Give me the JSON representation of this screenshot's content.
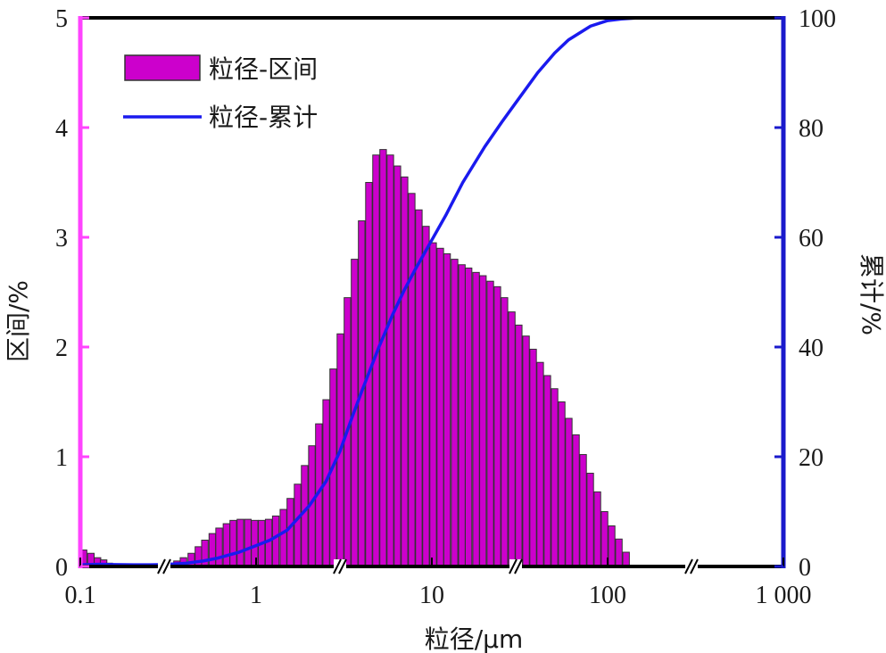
{
  "chart_data": {
    "type": "bar",
    "xlabel": "粒径/μm",
    "ylabel_left": "区间/%",
    "ylabel_right": "累计/%",
    "x_scale": "log",
    "xlim": [
      0.1,
      1000
    ],
    "ylim_left": [
      0,
      5
    ],
    "ylim_right": [
      0,
      100
    ],
    "x_ticks": [
      {
        "value": 0.1,
        "label": "0.1"
      },
      {
        "value": 1,
        "label": "1"
      },
      {
        "value": 10,
        "label": "10"
      },
      {
        "value": 100,
        "label": "100"
      },
      {
        "value": 1000,
        "label": "1 000"
      }
    ],
    "y_left_ticks": [
      0,
      1,
      2,
      3,
      4,
      5
    ],
    "y_right_ticks": [
      0,
      20,
      40,
      60,
      80,
      100
    ],
    "legend": {
      "position": "top-left"
    },
    "colors": {
      "bar_fill": "#cc00cc",
      "bar_edge": "#333333",
      "line": "#1a1aee",
      "left_axis": "#ff44ff",
      "right_axis": "#1a1acc"
    },
    "series": [
      {
        "name": "粒径-区间",
        "type": "bar",
        "axis": "left",
        "x": [
          0.1,
          0.11,
          0.12,
          0.13,
          0.14,
          0.15,
          0.17,
          0.18,
          0.2,
          0.22,
          0.24,
          0.26,
          0.28,
          0.31,
          0.34,
          0.37,
          0.41,
          0.45,
          0.49,
          0.54,
          0.59,
          0.65,
          0.71,
          0.78,
          0.86,
          0.94,
          1.03,
          1.13,
          1.24,
          1.37,
          1.5,
          1.65,
          1.81,
          1.99,
          2.18,
          2.4,
          2.63,
          2.89,
          3.17,
          3.48,
          3.82,
          4.2,
          4.61,
          5.06,
          5.56,
          6.1,
          6.7,
          7.36,
          8.08,
          8.87,
          9.74,
          10.7,
          11.7,
          12.9,
          14.2,
          15.5,
          17.1,
          18.7,
          20.6,
          22.6,
          24.8,
          27.3,
          29.9,
          32.9,
          36.1,
          39.6,
          43.5,
          47.8,
          52.5,
          57.6,
          63.3,
          69.5,
          76.3,
          83.8,
          92,
          101,
          111,
          122,
          134,
          147,
          161,
          177
        ],
        "values": [
          0.15,
          0.12,
          0.08,
          0.06,
          0.03,
          0.02,
          0.02,
          0.02,
          0.02,
          0.02,
          0.02,
          0.02,
          0.02,
          0.03,
          0.05,
          0.08,
          0.12,
          0.18,
          0.24,
          0.3,
          0.35,
          0.39,
          0.42,
          0.43,
          0.43,
          0.42,
          0.42,
          0.43,
          0.46,
          0.52,
          0.62,
          0.75,
          0.92,
          1.1,
          1.3,
          1.52,
          1.8,
          2.12,
          2.45,
          2.8,
          3.15,
          3.5,
          3.75,
          3.8,
          3.75,
          3.65,
          3.55,
          3.4,
          3.25,
          3.1,
          2.95,
          2.9,
          2.85,
          2.8,
          2.75,
          2.72,
          2.68,
          2.65,
          2.6,
          2.55,
          2.45,
          2.32,
          2.2,
          2.1,
          1.98,
          1.86,
          1.74,
          1.62,
          1.5,
          1.35,
          1.2,
          1.02,
          0.85,
          0.68,
          0.5,
          0.37,
          0.25,
          0.13,
          0,
          0,
          0,
          0
        ]
      },
      {
        "name": "粒径-累计",
        "type": "line",
        "axis": "right",
        "x": [
          0.1,
          0.13,
          0.15,
          0.2,
          0.25,
          0.3,
          0.4,
          0.5,
          0.6,
          0.8,
          1,
          1.2,
          1.5,
          2,
          2.5,
          3,
          3.5,
          4,
          5,
          6,
          7,
          8,
          10,
          12,
          15,
          20,
          25,
          30,
          40,
          50,
          60,
          80,
          100,
          120,
          150,
          200,
          300,
          500,
          1000
        ],
        "values": [
          0.3,
          0.4,
          0.35,
          0.3,
          0.3,
          0.35,
          0.6,
          1,
          1.5,
          2.6,
          3.8,
          4.8,
          6.6,
          11,
          15.5,
          21,
          27,
          32,
          40,
          46,
          50.5,
          54,
          59.5,
          64,
          70,
          76.5,
          81,
          84.5,
          90,
          93.6,
          96,
          98.5,
          99.5,
          99.8,
          100,
          100,
          100,
          100,
          100
        ]
      }
    ]
  }
}
